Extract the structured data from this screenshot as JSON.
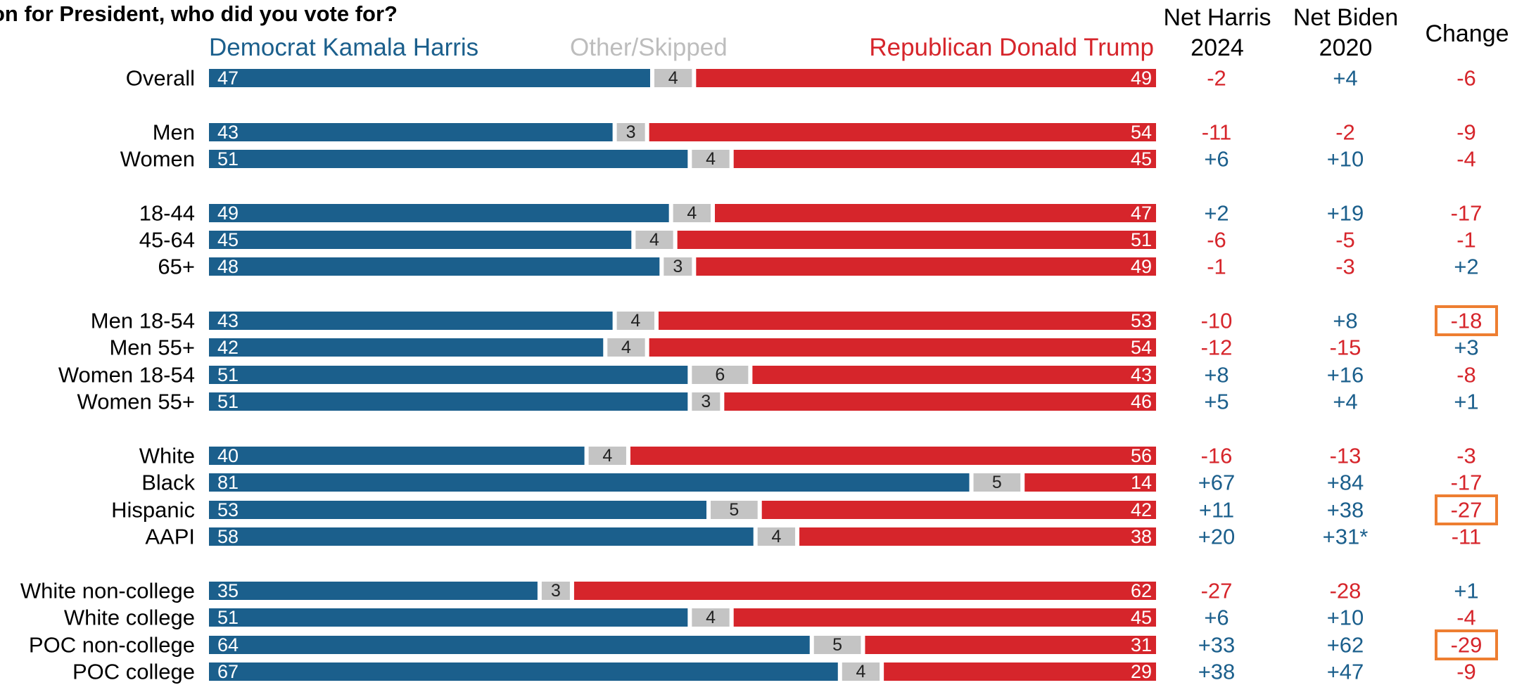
{
  "question_text": "on for President, who did you vote for?",
  "title_fragment": "",
  "legend": {
    "dem": "Democrat Kamala Harris",
    "other": "Other/Skipped",
    "rep": "Republican Donald Trump"
  },
  "columns": {
    "net_harris": [
      "Net Harris",
      "2024"
    ],
    "net_biden": [
      "Net Biden",
      "2020"
    ],
    "change": "Change"
  },
  "colors": {
    "dem": "#1b5f8c",
    "rep": "#d6252b",
    "other": "#c4c4c4",
    "highlight": "#ee7e31"
  },
  "chart_data": {
    "type": "bar",
    "orientation": "horizontal-stacked",
    "series_order": [
      "dem",
      "other",
      "rep"
    ],
    "rows": [
      {
        "label": "Overall",
        "dem": 47,
        "other": 4,
        "rep": 49,
        "net_harris": "-2",
        "net_biden": "+4",
        "change": "-6",
        "highlight": false
      },
      {
        "label": "Men",
        "dem": 43,
        "other": 3,
        "rep": 54,
        "net_harris": "-11",
        "net_biden": "-2",
        "change": "-9",
        "highlight": false
      },
      {
        "label": "Women",
        "dem": 51,
        "other": 4,
        "rep": 45,
        "net_harris": "+6",
        "net_biden": "+10",
        "change": "-4",
        "highlight": false
      },
      {
        "label": "18-44",
        "dem": 49,
        "other": 4,
        "rep": 47,
        "net_harris": "+2",
        "net_biden": "+19",
        "change": "-17",
        "highlight": false
      },
      {
        "label": "45-64",
        "dem": 45,
        "other": 4,
        "rep": 51,
        "net_harris": "-6",
        "net_biden": "-5",
        "change": "-1",
        "highlight": false
      },
      {
        "label": "65+",
        "dem": 48,
        "other": 3,
        "rep": 49,
        "net_harris": "-1",
        "net_biden": "-3",
        "change": "+2",
        "highlight": false
      },
      {
        "label": "Men 18-54",
        "dem": 43,
        "other": 4,
        "rep": 53,
        "net_harris": "-10",
        "net_biden": "+8",
        "change": "-18",
        "highlight": true
      },
      {
        "label": "Men 55+",
        "dem": 42,
        "other": 4,
        "rep": 54,
        "net_harris": "-12",
        "net_biden": "-15",
        "change": "+3",
        "highlight": false
      },
      {
        "label": "Women 18-54",
        "dem": 51,
        "other": 6,
        "rep": 43,
        "net_harris": "+8",
        "net_biden": "+16",
        "change": "-8",
        "highlight": false
      },
      {
        "label": "Women 55+",
        "dem": 51,
        "other": 3,
        "rep": 46,
        "net_harris": "+5",
        "net_biden": "+4",
        "change": "+1",
        "highlight": false
      },
      {
        "label": "White",
        "dem": 40,
        "other": 4,
        "rep": 56,
        "net_harris": "-16",
        "net_biden": "-13",
        "change": "-3",
        "highlight": false
      },
      {
        "label": "Black",
        "dem": 81,
        "other": 5,
        "rep": 14,
        "net_harris": "+67",
        "net_biden": "+84",
        "change": "-17",
        "highlight": false
      },
      {
        "label": "Hispanic",
        "dem": 53,
        "other": 5,
        "rep": 42,
        "net_harris": "+11",
        "net_biden": "+38",
        "change": "-27",
        "highlight": true
      },
      {
        "label": "AAPI",
        "dem": 58,
        "other": 4,
        "rep": 38,
        "net_harris": "+20",
        "net_biden": "+31*",
        "change": "-11",
        "highlight": false
      },
      {
        "label": "White non-college",
        "dem": 35,
        "other": 3,
        "rep": 62,
        "net_harris": "-27",
        "net_biden": "-28",
        "change": "+1",
        "highlight": false
      },
      {
        "label": "White college",
        "dem": 51,
        "other": 4,
        "rep": 45,
        "net_harris": "+6",
        "net_biden": "+10",
        "change": "-4",
        "highlight": false
      },
      {
        "label": "POC non-college",
        "dem": 64,
        "other": 5,
        "rep": 31,
        "net_harris": "+33",
        "net_biden": "+62",
        "change": "-29",
        "highlight": true
      },
      {
        "label": "POC college",
        "dem": 67,
        "other": 4,
        "rep": 29,
        "net_harris": "+38",
        "net_biden": "+47",
        "change": "-9",
        "highlight": false
      }
    ]
  }
}
